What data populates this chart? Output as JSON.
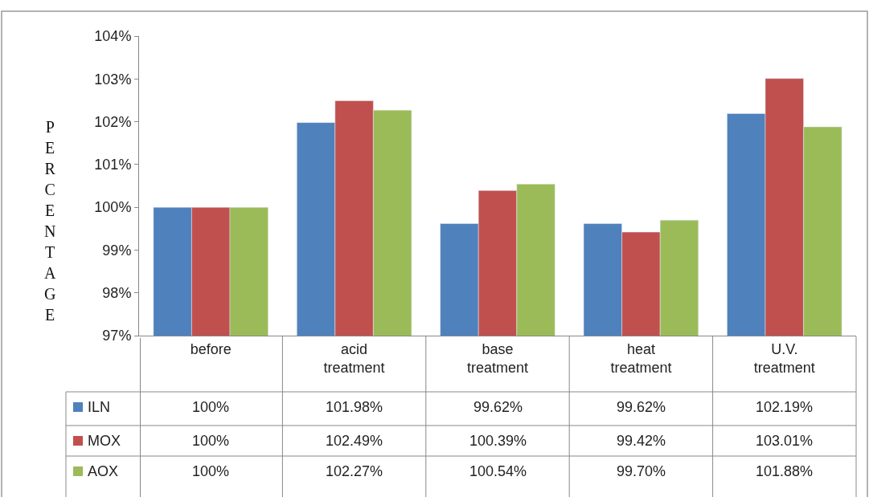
{
  "chart_data": {
    "type": "bar",
    "ylabel": "PERCENTAGE",
    "categories": [
      "before",
      "acid treatment",
      "base treatment",
      "heat treatment",
      "U.V. treatment"
    ],
    "series": [
      {
        "name": "ILN",
        "color": "#4f81bd",
        "values": [
          100,
          101.98,
          99.62,
          99.62,
          102.19
        ],
        "value_labels": [
          "100%",
          "101.98%",
          "99.62%",
          "99.62%",
          "102.19%"
        ]
      },
      {
        "name": "MOX",
        "color": "#c0504d",
        "values": [
          100,
          102.49,
          100.39,
          99.42,
          103.01
        ],
        "value_labels": [
          "100%",
          "102.49%",
          "100.39%",
          "99.42%",
          "103.01%"
        ]
      },
      {
        "name": "AOX",
        "color": "#9bbb59",
        "values": [
          100,
          102.27,
          100.54,
          99.7,
          101.88
        ],
        "value_labels": [
          "100%",
          "102.27%",
          "100.54%",
          "99.70%",
          "101.88%"
        ]
      }
    ],
    "ylim": [
      97,
      104
    ],
    "yticks": [
      {
        "value": 97,
        "label": "97%"
      },
      {
        "value": 98,
        "label": "98%"
      },
      {
        "value": 99,
        "label": "99%"
      },
      {
        "value": 100,
        "label": "100%"
      },
      {
        "value": 101,
        "label": "101%"
      },
      {
        "value": 102,
        "label": "102%"
      },
      {
        "value": 103,
        "label": "103%"
      },
      {
        "value": 104,
        "label": "104%"
      }
    ],
    "legend": "bottom"
  }
}
